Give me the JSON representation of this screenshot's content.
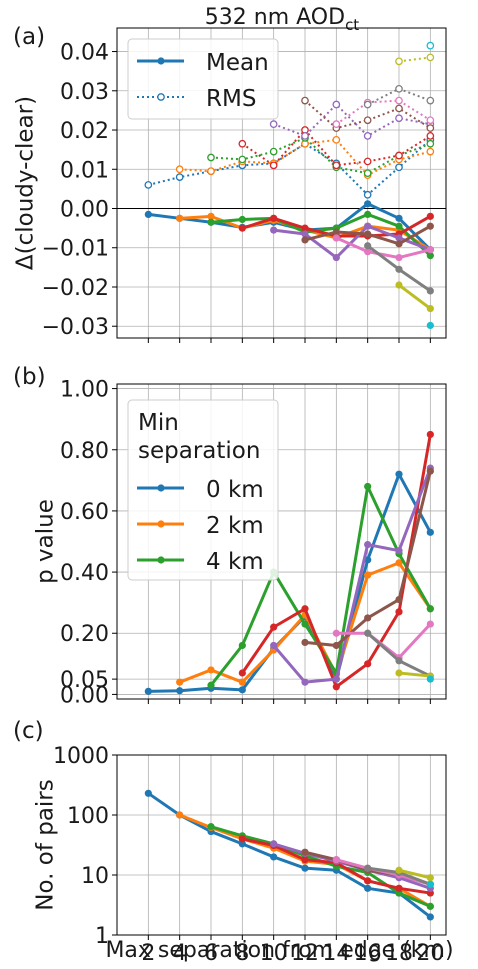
{
  "title": "532 nm AOD",
  "title_sub": "ct",
  "chart_data": [
    {
      "panel_label": "(a)",
      "type": "line",
      "ylabel": "Δ(cloudy-clear)",
      "ylim": [
        -0.033,
        0.046
      ],
      "y_ticks": [
        -0.03,
        -0.02,
        -0.01,
        0.0,
        0.01,
        0.02,
        0.03,
        0.04
      ],
      "y_tick_labels": [
        "−0.03",
        "−0.02",
        "−0.01",
        "0.00",
        "0.01",
        "0.02",
        "0.03",
        "0.04"
      ],
      "grid": true,
      "legend_position": "top-left",
      "legend": [
        {
          "label": "Mean",
          "style": "solid-dot"
        },
        {
          "label": "RMS",
          "style": "dotted-open"
        }
      ],
      "series": [
        {
          "color": "#1f77b4",
          "x": [
            2,
            4,
            6,
            8,
            10,
            12,
            14,
            16,
            18,
            20
          ],
          "mean": [
            -0.0015,
            -0.0025,
            -0.0035,
            -0.0048,
            -0.0035,
            -0.0055,
            -0.005,
            0.0012,
            -0.0025,
            -0.0105
          ],
          "rms": [
            0.006,
            0.008,
            0.0095,
            0.011,
            0.0115,
            0.0165,
            0.0115,
            0.0035,
            0.0105,
            0.0175
          ]
        },
        {
          "color": "#ff7f0e",
          "x": [
            4,
            6,
            8,
            10,
            12,
            14,
            16,
            18,
            20
          ],
          "mean": [
            -0.0025,
            -0.002,
            -0.005,
            -0.003,
            -0.0055,
            -0.0075,
            -0.0045,
            -0.0055,
            -0.0105
          ],
          "rms": [
            0.01,
            0.0095,
            0.012,
            0.0115,
            0.0165,
            0.0175,
            0.0085,
            0.0125,
            0.0145
          ]
        },
        {
          "color": "#2ca02c",
          "x": [
            6,
            8,
            10,
            12,
            14,
            16,
            18,
            20
          ],
          "mean": [
            -0.0035,
            -0.0028,
            -0.0025,
            -0.006,
            -0.005,
            -0.0015,
            -0.0045,
            -0.012
          ],
          "rms": [
            0.013,
            0.0125,
            0.0145,
            0.018,
            0.0105,
            0.009,
            0.0135,
            0.0165
          ]
        },
        {
          "color": "#d62728",
          "x": [
            8,
            10,
            12,
            14,
            16,
            18,
            20
          ],
          "mean": [
            -0.005,
            -0.0025,
            -0.005,
            -0.007,
            -0.007,
            -0.0065,
            -0.002
          ],
          "rms": [
            0.0165,
            0.011,
            0.02,
            0.011,
            0.012,
            0.0135,
            0.0185
          ]
        },
        {
          "color": "#9467bd",
          "x": [
            10,
            12,
            14,
            16,
            18,
            20
          ],
          "mean": [
            -0.0055,
            -0.0065,
            -0.0125,
            -0.0045,
            -0.0075,
            -0.0105
          ],
          "rms": [
            0.0215,
            0.0185,
            0.0265,
            0.0185,
            0.023,
            0.0215
          ]
        },
        {
          "color": "#8c564b",
          "x": [
            12,
            14,
            16,
            18,
            20
          ],
          "mean": [
            -0.008,
            -0.006,
            -0.0065,
            -0.009,
            -0.0045
          ],
          "rms": [
            0.0275,
            0.0205,
            0.0225,
            0.0255,
            0.0205
          ]
        },
        {
          "color": "#e377c2",
          "x": [
            14,
            16,
            18,
            20
          ],
          "mean": [
            -0.0075,
            -0.011,
            -0.0125,
            -0.0105
          ],
          "rms": [
            0.0215,
            0.027,
            0.0275,
            0.0225
          ]
        },
        {
          "color": "#7f7f7f",
          "x": [
            16,
            18,
            20
          ],
          "mean": [
            -0.0095,
            -0.0155,
            -0.021
          ],
          "rms": [
            0.0265,
            0.0305,
            0.0275
          ]
        },
        {
          "color": "#bcbd22",
          "x": [
            18,
            20
          ],
          "mean": [
            -0.0195,
            -0.0255
          ],
          "rms": [
            0.0375,
            0.0385
          ]
        },
        {
          "color": "#17becf",
          "x": [
            20
          ],
          "mean": [
            -0.0298
          ],
          "rms": [
            0.0415
          ]
        }
      ]
    },
    {
      "panel_label": "(b)",
      "type": "line",
      "ylabel": "p value",
      "ylim": [
        -0.015,
        1.015
      ],
      "y_ticks": [
        0.0,
        0.05,
        0.2,
        0.4,
        0.6,
        0.8,
        1.0
      ],
      "y_tick_labels": [
        "0.00",
        "0.05",
        "0.20",
        "0.40",
        "0.60",
        "0.80",
        "1.00"
      ],
      "grid": true,
      "legend_position": "upper-left",
      "legend_title": "Min\nseparation",
      "legend": [
        {
          "label": "0 km",
          "color": "#1f77b4"
        },
        {
          "label": "2 km",
          "color": "#ff7f0e"
        },
        {
          "label": "4 km",
          "color": "#2ca02c"
        }
      ],
      "series": [
        {
          "color": "#1f77b4",
          "x": [
            2,
            4,
            6,
            8,
            10,
            12,
            14,
            16,
            18,
            20
          ],
          "values": [
            0.01,
            0.012,
            0.02,
            0.015,
            0.15,
            0.255,
            0.05,
            0.44,
            0.72,
            0.53
          ]
        },
        {
          "color": "#ff7f0e",
          "x": [
            4,
            6,
            8,
            10,
            12,
            14,
            16,
            18,
            20
          ],
          "values": [
            0.04,
            0.08,
            0.04,
            0.145,
            0.26,
            0.065,
            0.39,
            0.43,
            0.28
          ]
        },
        {
          "color": "#2ca02c",
          "x": [
            6,
            8,
            10,
            12,
            14,
            16,
            18,
            20
          ],
          "values": [
            0.03,
            0.16,
            0.4,
            0.23,
            0.07,
            0.68,
            0.46,
            0.28
          ]
        },
        {
          "color": "#d62728",
          "x": [
            8,
            10,
            12,
            14,
            16,
            18,
            20
          ],
          "values": [
            0.07,
            0.22,
            0.28,
            0.025,
            0.1,
            0.27,
            0.85
          ]
        },
        {
          "color": "#9467bd",
          "x": [
            10,
            12,
            14,
            16,
            18,
            20
          ],
          "values": [
            0.16,
            0.04,
            0.05,
            0.49,
            0.47,
            0.74
          ]
        },
        {
          "color": "#8c564b",
          "x": [
            12,
            14,
            16,
            18,
            20
          ],
          "values": [
            0.17,
            0.16,
            0.25,
            0.31,
            0.73
          ]
        },
        {
          "color": "#e377c2",
          "x": [
            14,
            16,
            18,
            20
          ],
          "values": [
            0.2,
            0.2,
            0.12,
            0.23
          ]
        },
        {
          "color": "#7f7f7f",
          "x": [
            16,
            18,
            20
          ],
          "values": [
            0.2,
            0.11,
            0.06
          ]
        },
        {
          "color": "#bcbd22",
          "x": [
            18,
            20
          ],
          "values": [
            0.07,
            0.06
          ]
        },
        {
          "color": "#17becf",
          "x": [
            20
          ],
          "values": [
            0.05
          ]
        }
      ]
    },
    {
      "panel_label": "(c)",
      "type": "line",
      "ylabel": "No. of pairs",
      "xlabel": "Max separation from edge (km)",
      "yscale": "log",
      "ylim": [
        1,
        1000
      ],
      "y_ticks": [
        1,
        10,
        100,
        1000
      ],
      "y_tick_labels": [
        "1",
        "10",
        "100",
        "1000"
      ],
      "x_ticks": [
        2,
        4,
        6,
        8,
        10,
        12,
        14,
        16,
        18,
        20
      ],
      "x_tick_labels": [
        "2",
        "4",
        "6",
        "8",
        "10",
        "12",
        "14",
        "16",
        "18",
        "20"
      ],
      "grid": true,
      "series": [
        {
          "color": "#1f77b4",
          "x": [
            2,
            4,
            6,
            8,
            10,
            12,
            14,
            16,
            18,
            20
          ],
          "values": [
            230,
            100,
            53,
            33,
            20,
            13,
            12,
            6,
            5,
            2
          ]
        },
        {
          "color": "#ff7f0e",
          "x": [
            4,
            6,
            8,
            10,
            12,
            14,
            16,
            18,
            20
          ],
          "values": [
            100,
            62,
            40,
            28,
            17,
            15,
            8,
            6,
            3
          ]
        },
        {
          "color": "#2ca02c",
          "x": [
            6,
            8,
            10,
            12,
            14,
            16,
            18,
            20
          ],
          "values": [
            64,
            45,
            33,
            21,
            14,
            11,
            5,
            3
          ]
        },
        {
          "color": "#d62728",
          "x": [
            8,
            10,
            12,
            14,
            16,
            18,
            20
          ],
          "values": [
            40,
            31,
            18,
            16,
            8,
            6,
            5
          ]
        },
        {
          "color": "#9467bd",
          "x": [
            10,
            12,
            14,
            16,
            18,
            20
          ],
          "values": [
            33,
            23,
            17,
            12,
            9,
            6
          ]
        },
        {
          "color": "#8c564b",
          "x": [
            12,
            14,
            16,
            18,
            20
          ],
          "values": [
            24,
            18,
            12,
            10,
            7
          ]
        },
        {
          "color": "#e377c2",
          "x": [
            14,
            16,
            18,
            20
          ],
          "values": [
            18,
            13,
            10,
            7
          ]
        },
        {
          "color": "#7f7f7f",
          "x": [
            16,
            18,
            20
          ],
          "values": [
            13,
            11,
            7
          ]
        },
        {
          "color": "#bcbd22",
          "x": [
            18,
            20
          ],
          "values": [
            12,
            9
          ]
        },
        {
          "color": "#17becf",
          "x": [
            20
          ],
          "values": [
            7
          ]
        }
      ]
    }
  ]
}
